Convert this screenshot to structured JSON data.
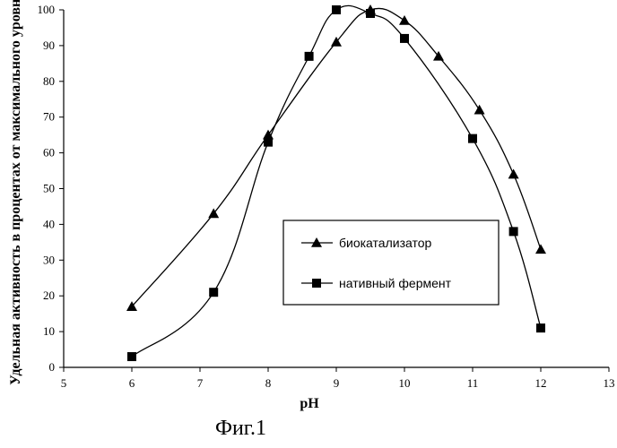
{
  "chart_data": {
    "type": "line",
    "title": "",
    "xlabel": "pH",
    "ylabel": "Удельная активность в процентах от максимального уровня",
    "xlim": [
      5,
      13
    ],
    "ylim": [
      0,
      100
    ],
    "x_ticks": [
      5,
      6,
      7,
      8,
      9,
      10,
      11,
      12,
      13
    ],
    "y_ticks": [
      0,
      10,
      20,
      30,
      40,
      50,
      60,
      70,
      80,
      90,
      100
    ],
    "grid": false,
    "legend_position": "center-right",
    "series": [
      {
        "name": "биокатализатор",
        "marker": "triangle",
        "x": [
          6,
          7.2,
          8,
          9,
          9.5,
          10,
          10.5,
          11.1,
          11.6,
          12
        ],
        "y": [
          17,
          43,
          65,
          91,
          100,
          97,
          87,
          72,
          54,
          33
        ]
      },
      {
        "name": "нативный фермент",
        "marker": "square",
        "x": [
          6,
          7.2,
          8,
          8.6,
          9,
          9.5,
          10,
          11,
          11.6,
          12
        ],
        "y": [
          3,
          21,
          63,
          87,
          100,
          99,
          92,
          64,
          38,
          11
        ]
      }
    ]
  },
  "caption": "Фиг.1"
}
